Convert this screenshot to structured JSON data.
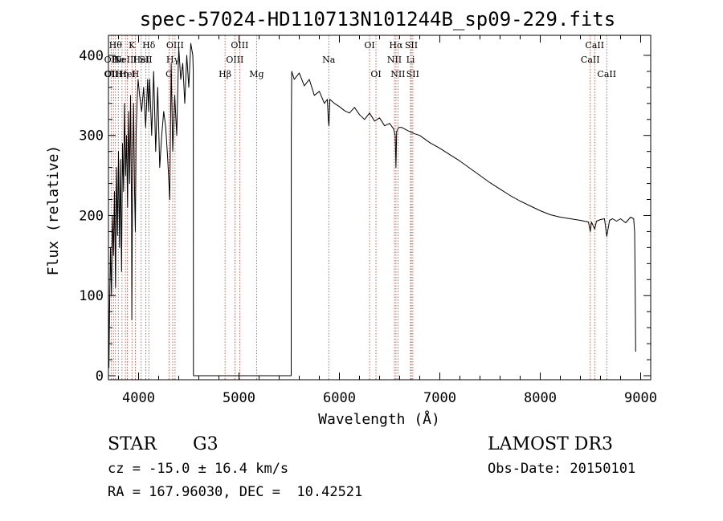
{
  "chart_data": {
    "type": "line",
    "title": "spec-57024-HD110713N101244B_sp09-229.fits",
    "xlabel": "Wavelength (Å)",
    "ylabel": "Flux (relative)",
    "xlim": [
      3700,
      9100
    ],
    "ylim": [
      -5,
      425
    ],
    "xticks": [
      4000,
      5000,
      6000,
      7000,
      8000,
      9000
    ],
    "yticks": [
      0,
      100,
      200,
      300,
      400
    ],
    "series": [
      {
        "name": "spectrum",
        "x": [
          3700,
          3705,
          3712,
          3720,
          3730,
          3740,
          3750,
          3760,
          3770,
          3780,
          3790,
          3800,
          3810,
          3820,
          3830,
          3840,
          3850,
          3860,
          3870,
          3880,
          3890,
          3900,
          3910,
          3920,
          3930,
          3933,
          3940,
          3950,
          3960,
          3968,
          3975,
          3985,
          3995,
          4010,
          4030,
          4050,
          4070,
          4090,
          4101,
          4110,
          4130,
          4150,
          4170,
          4190,
          4210,
          4230,
          4250,
          4270,
          4290,
          4310,
          4325,
          4340,
          4360,
          4380,
          4400,
          4420,
          4440,
          4460,
          4480,
          4500,
          4520,
          4540,
          4545,
          4546,
          5520,
          5521,
          5525,
          5550,
          5600,
          5650,
          5700,
          5750,
          5800,
          5850,
          5880,
          5890,
          5896,
          5905,
          5950,
          6000,
          6050,
          6100,
          6150,
          6200,
          6250,
          6300,
          6350,
          6400,
          6450,
          6500,
          6540,
          6555,
          6563,
          6570,
          6590,
          6620,
          6680,
          6750,
          6800,
          6900,
          7000,
          7100,
          7200,
          7300,
          7400,
          7500,
          7600,
          7700,
          7800,
          7900,
          8000,
          8100,
          8200,
          8300,
          8400,
          8480,
          8498,
          8510,
          8542,
          8560,
          8600,
          8640,
          8662,
          8690,
          8720,
          8760,
          8800,
          8850,
          8900,
          8930,
          8940,
          8945,
          8950
        ],
        "y": [
          130,
          10,
          90,
          160,
          100,
          200,
          150,
          230,
          110,
          260,
          175,
          280,
          160,
          270,
          130,
          290,
          230,
          340,
          250,
          300,
          210,
          330,
          240,
          350,
          200,
          70,
          250,
          340,
          230,
          180,
          300,
          340,
          370,
          350,
          330,
          360,
          310,
          370,
          330,
          370,
          300,
          380,
          280,
          360,
          260,
          300,
          330,
          310,
          270,
          220,
          390,
          280,
          350,
          300,
          410,
          370,
          390,
          340,
          400,
          360,
          415,
          400,
          380,
          0,
          0,
          300,
          380,
          370,
          378,
          362,
          370,
          350,
          355,
          340,
          345,
          318,
          312,
          345,
          340,
          336,
          331,
          328,
          335,
          326,
          320,
          328,
          318,
          322,
          312,
          315,
          308,
          300,
          260,
          305,
          310,
          310,
          306,
          302,
          300,
          291,
          284,
          276,
          268,
          259,
          250,
          241,
          233,
          225,
          218,
          212,
          206,
          201,
          198,
          196,
          194,
          192,
          180,
          192,
          183,
          193,
          195,
          196,
          174,
          194,
          196,
          193,
          196,
          191,
          198,
          196,
          180,
          120,
          30
        ]
      }
    ],
    "line_labels": [
      {
        "wl": 3727,
        "row": 2,
        "text": "OII"
      },
      {
        "wl": 3728,
        "row": 1,
        "text": "OII"
      },
      {
        "wl": 3750,
        "row": 2,
        "text": "OIII"
      },
      {
        "wl": 3770,
        "row": 0,
        "text": "Hθ"
      },
      {
        "wl": 3798,
        "row": 1,
        "text": "He"
      },
      {
        "wl": 3835,
        "row": 2,
        "text": "Hη"
      },
      {
        "wl": 3869,
        "row": 1,
        "text": "NeIII"
      },
      {
        "wl": 3889,
        "row": 2,
        "text": "HeI"
      },
      {
        "wl": 3934,
        "row": 0,
        "text": "K"
      },
      {
        "wl": 3968,
        "row": 2,
        "text": "H"
      },
      {
        "wl": 4026,
        "row": 1,
        "text": "HeI"
      },
      {
        "wl": 4072,
        "row": 1,
        "text": "SII"
      },
      {
        "wl": 4102,
        "row": 0,
        "text": "Hδ"
      },
      {
        "wl": 4304,
        "row": 2,
        "text": "G"
      },
      {
        "wl": 4340,
        "row": 1,
        "text": "Hγ"
      },
      {
        "wl": 4363,
        "row": 0,
        "text": "OIII"
      },
      {
        "wl": 4861,
        "row": 2,
        "text": "Hβ"
      },
      {
        "wl": 4959,
        "row": 1,
        "text": "OIII"
      },
      {
        "wl": 5007,
        "row": 0,
        "text": "OIII"
      },
      {
        "wl": 5175,
        "row": 2,
        "text": "Mg"
      },
      {
        "wl": 5894,
        "row": 1,
        "text": "Na"
      },
      {
        "wl": 6300,
        "row": 0,
        "text": "OI"
      },
      {
        "wl": 6364,
        "row": 2,
        "text": "OI"
      },
      {
        "wl": 6548,
        "row": 1,
        "text": "NII"
      },
      {
        "wl": 6563,
        "row": 0,
        "text": "Hα"
      },
      {
        "wl": 6583,
        "row": 2,
        "text": "NII"
      },
      {
        "wl": 6708,
        "row": 1,
        "text": "Li"
      },
      {
        "wl": 6716,
        "row": 0,
        "text": "SII"
      },
      {
        "wl": 6731,
        "row": 2,
        "text": "SII"
      },
      {
        "wl": 8498,
        "row": 1,
        "text": "CaII"
      },
      {
        "wl": 8542,
        "row": 0,
        "text": "CaII"
      },
      {
        "wl": 8662,
        "row": 2,
        "text": "CaII"
      }
    ],
    "marker_lines": [
      3727,
      3750,
      3770,
      3798,
      3835,
      3869,
      3889,
      3934,
      3968,
      4026,
      4072,
      4102,
      4304,
      4340,
      4363,
      4861,
      4959,
      5007,
      5175,
      5894,
      6300,
      6364,
      6548,
      6563,
      6583,
      6708,
      6716,
      6731,
      8498,
      8542,
      8662
    ],
    "colors": {
      "line": "#000000",
      "marker": "#c0392b",
      "axis": "#000000"
    }
  },
  "info": {
    "object_class": "STAR",
    "subclass": "G3",
    "survey": "LAMOST DR3",
    "redshift": "cz = -15.0 ± 16.4 km/s",
    "obs_date": "Obs-Date: 20150101",
    "coords": "RA = 167.96030, DEC =  10.42521"
  }
}
